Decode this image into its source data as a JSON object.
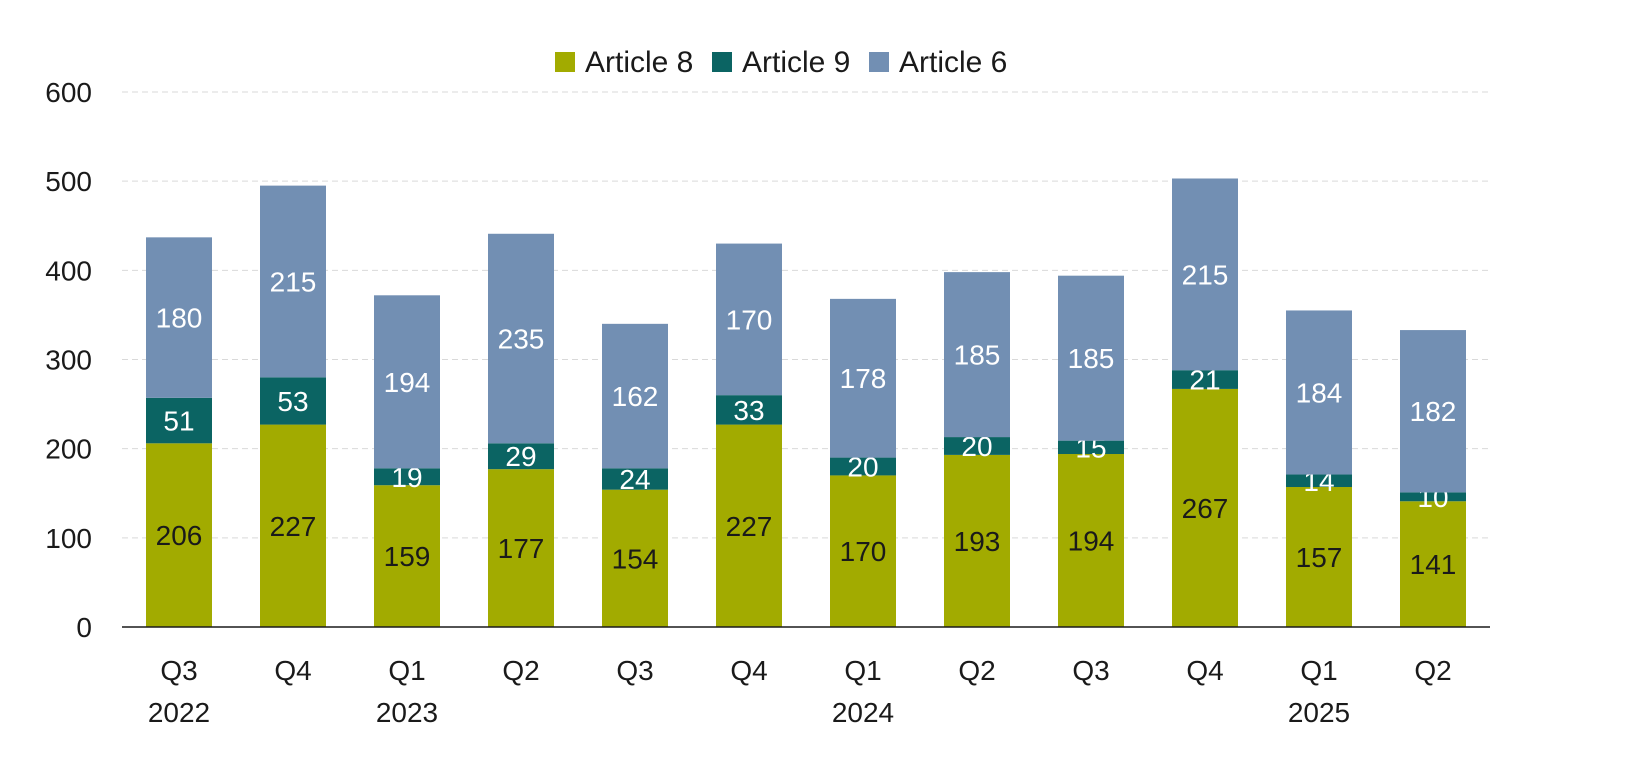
{
  "chart_data": {
    "type": "bar",
    "stacked": true,
    "categories": [
      "Q3 2022",
      "Q4",
      "Q1 2023",
      "Q2",
      "Q3",
      "Q4",
      "Q1 2024",
      "Q2",
      "Q3",
      "Q4",
      "Q1 2025",
      "Q2"
    ],
    "category_labels": [
      [
        "Q3",
        "2022"
      ],
      [
        "Q4"
      ],
      [
        "Q1",
        "2023"
      ],
      [
        "Q2"
      ],
      [
        "Q3"
      ],
      [
        "Q4"
      ],
      [
        "Q1",
        "2024"
      ],
      [
        "Q2"
      ],
      [
        "Q3"
      ],
      [
        "Q4"
      ],
      [
        "Q1",
        "2025"
      ],
      [
        "Q2"
      ]
    ],
    "series": [
      {
        "name": "Article 8",
        "color": "#a2ab00",
        "label_color": "#1a1a1a",
        "values": [
          206,
          227,
          159,
          177,
          154,
          227,
          170,
          193,
          194,
          267,
          157,
          141
        ]
      },
      {
        "name": "Article 9",
        "color": "#0b6463",
        "label_color": "#ffffff",
        "values": [
          51,
          53,
          19,
          29,
          24,
          33,
          20,
          20,
          15,
          21,
          14,
          10
        ]
      },
      {
        "name": "Article 6",
        "color": "#728fb3",
        "label_color": "#ffffff",
        "values": [
          180,
          215,
          194,
          235,
          162,
          170,
          178,
          185,
          185,
          215,
          184,
          182
        ]
      }
    ],
    "legend_order": [
      "Article 8",
      "Article 9",
      "Article 6"
    ],
    "legend_position": "top-center",
    "ylim": [
      0,
      600
    ],
    "yticks": [
      0,
      100,
      200,
      300,
      400,
      500,
      600
    ],
    "grid": "horizontal-dashed",
    "title": "",
    "xlabel": "",
    "ylabel": ""
  }
}
